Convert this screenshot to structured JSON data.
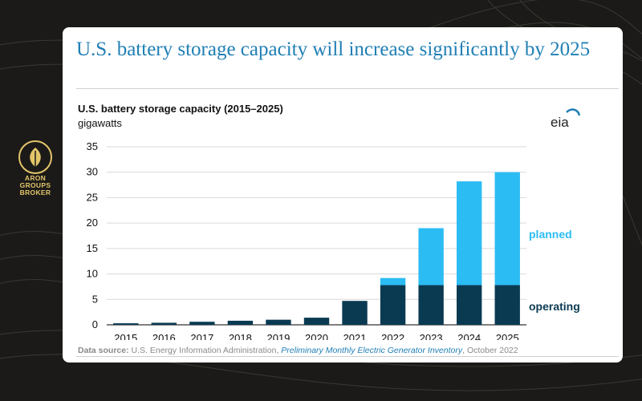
{
  "header": {
    "title": "U.S. battery storage capacity will increase significantly by 2025"
  },
  "logo": {
    "line1": "ARON",
    "line2": "GROUPS",
    "line3": "BROKER"
  },
  "eia": {
    "label": "eia"
  },
  "source": {
    "prefix": "Data source:",
    "agency": " U.S. Energy Information Administration, ",
    "report": "Preliminary Monthly Electric Generator Inventory",
    "date": ", October 2022"
  },
  "chart_data": {
    "type": "bar",
    "stacked": true,
    "title": "U.S. battery storage capacity (2015–2025)",
    "ylabel": "gigawatts",
    "xlabel": "",
    "ylim": [
      0,
      35
    ],
    "yticks": [
      0,
      5,
      10,
      15,
      20,
      25,
      30,
      35
    ],
    "grid": true,
    "categories": [
      "2015",
      "2016",
      "2017",
      "2018",
      "2019",
      "2020",
      "2021",
      "2022",
      "2023",
      "2024",
      "2025"
    ],
    "series": [
      {
        "name": "operating",
        "color": "#0a3a52",
        "values": [
          0.3,
          0.4,
          0.6,
          0.8,
          1.0,
          1.4,
          4.7,
          7.8,
          7.8,
          7.8,
          7.8
        ]
      },
      {
        "name": "planned",
        "color": "#2bbcf3",
        "values": [
          0,
          0,
          0,
          0,
          0,
          0,
          0,
          1.4,
          11.2,
          20.4,
          22.2
        ]
      }
    ],
    "legend": "right, inline labels"
  }
}
